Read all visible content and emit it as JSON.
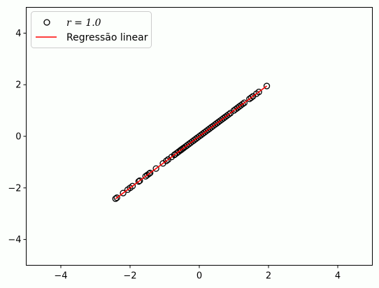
{
  "chart_data": {
    "type": "scatter",
    "title": "",
    "xlabel": "",
    "ylabel": "",
    "xlim": [
      -5,
      5
    ],
    "ylim": [
      -5,
      5
    ],
    "xticks": [
      -4,
      -2,
      0,
      2,
      4
    ],
    "yticks": [
      -4,
      -2,
      0,
      2,
      4
    ],
    "xtick_labels": [
      "−4",
      "−2",
      "0",
      "2",
      "4"
    ],
    "ytick_labels": [
      "−4",
      "−2",
      "0",
      "2",
      "4"
    ],
    "grid": false,
    "legend_position": "top-left",
    "series": [
      {
        "name": "r = 1.0",
        "kind": "scatter",
        "marker": "open-circle",
        "color": "#000000",
        "x": [
          -2.42,
          -2.38,
          -2.2,
          -2.07,
          -2.0,
          -1.93,
          -1.75,
          -1.72,
          -1.55,
          -1.5,
          -1.45,
          -1.42,
          -1.25,
          -1.05,
          -0.95,
          -0.9,
          -0.8,
          -0.72,
          -0.7,
          -0.65,
          -0.6,
          -0.55,
          -0.52,
          -0.48,
          -0.45,
          -0.4,
          -0.35,
          -0.3,
          -0.25,
          -0.2,
          -0.15,
          -0.1,
          -0.05,
          0.0,
          0.05,
          0.1,
          0.15,
          0.2,
          0.25,
          0.3,
          0.35,
          0.4,
          0.45,
          0.5,
          0.55,
          0.6,
          0.65,
          0.7,
          0.75,
          0.8,
          0.85,
          0.9,
          1.0,
          1.05,
          1.1,
          1.15,
          1.2,
          1.25,
          1.3,
          1.45,
          1.5,
          1.55,
          1.65,
          1.72,
          1.95
        ],
        "y": [
          -2.42,
          -2.38,
          -2.2,
          -2.07,
          -2.0,
          -1.93,
          -1.75,
          -1.72,
          -1.55,
          -1.5,
          -1.45,
          -1.42,
          -1.25,
          -1.05,
          -0.95,
          -0.9,
          -0.8,
          -0.72,
          -0.7,
          -0.65,
          -0.6,
          -0.55,
          -0.52,
          -0.48,
          -0.45,
          -0.4,
          -0.35,
          -0.3,
          -0.25,
          -0.2,
          -0.15,
          -0.1,
          -0.05,
          0.0,
          0.05,
          0.1,
          0.15,
          0.2,
          0.25,
          0.3,
          0.35,
          0.4,
          0.45,
          0.5,
          0.55,
          0.6,
          0.65,
          0.7,
          0.75,
          0.8,
          0.85,
          0.9,
          1.0,
          1.05,
          1.1,
          1.15,
          1.2,
          1.25,
          1.3,
          1.45,
          1.5,
          1.55,
          1.65,
          1.72,
          1.95
        ]
      },
      {
        "name": "Regressão linear",
        "kind": "line",
        "color": "#ff0000",
        "x": [
          -2.42,
          1.95
        ],
        "y": [
          -2.42,
          1.95
        ]
      }
    ]
  }
}
